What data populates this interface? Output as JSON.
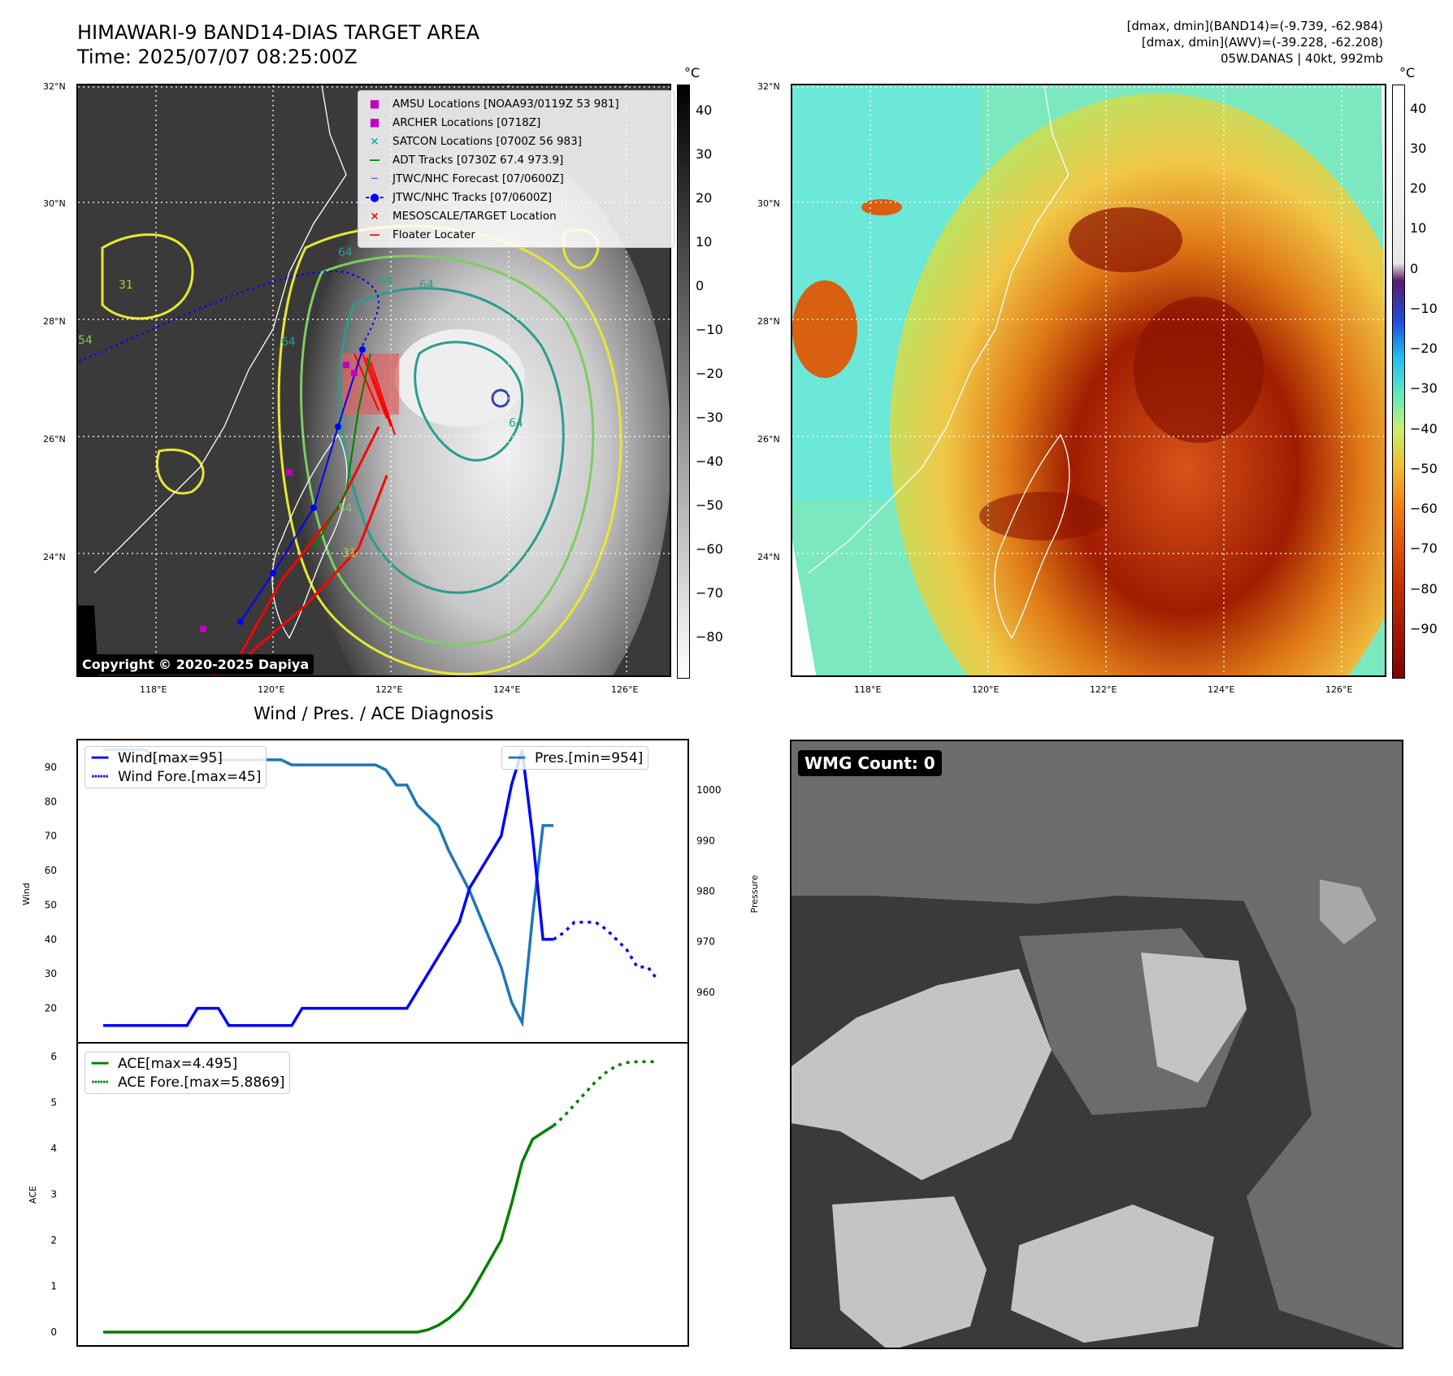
{
  "header": {
    "title_line1": "HIMAWARI-9 BAND14-DIAS TARGET AREA",
    "title_line2": "Time: 2025/07/07 08:25:00Z",
    "info_line1": "[dmax, dmin](BAND14)=(-9.739, -62.984)",
    "info_line2": "[dmax, dmin](AWV)=(-39.228, -62.208)",
    "info_line3": "05W.DANAS | 40kt, 992mb"
  },
  "map": {
    "lat_labels": [
      "32°N",
      "30°N",
      "28°N",
      "26°N",
      "24°N"
    ],
    "lon_labels": [
      "118°E",
      "120°E",
      "122°E",
      "124°E",
      "126°E"
    ],
    "copyright": "Copyright © 2020-2025 Dapiya",
    "legend": [
      {
        "label": "AMSU Locations [NOAA93/0119Z 53 981]",
        "symbol": "■",
        "color": "#c000c0"
      },
      {
        "label": "ARCHER Locations [0718Z]",
        "symbol": "■",
        "color": "#c000c0"
      },
      {
        "label": "SATCON Locations [0700Z 56 983]",
        "symbol": "×",
        "color": "#00b0b0"
      },
      {
        "label": "ADT Tracks [0730Z 67.4 973.9]",
        "symbol": "—",
        "color": "#008000"
      },
      {
        "label": "JTWC/NHC Forecast [07/0600Z]",
        "symbol": "┈",
        "color": "#0000ff"
      },
      {
        "label": "JTWC/NHC Tracks [07/0600Z]",
        "symbol": "-●-",
        "color": "#0000ff"
      },
      {
        "label": "MESOSCALE/TARGET Location",
        "symbol": "×",
        "color": "#ff0000"
      },
      {
        "label": "Floater Locater",
        "symbol": "—",
        "color": "#ff0000"
      }
    ],
    "contour_labels": [
      "64",
      "64",
      "64",
      "64",
      "64",
      "54",
      "31",
      "31",
      "54"
    ]
  },
  "colorbar_left": {
    "unit": "°C",
    "ticks": [
      "40",
      "30",
      "20",
      "10",
      "0",
      "−10",
      "−20",
      "−30",
      "−40",
      "−50",
      "−60",
      "−70",
      "−80"
    ]
  },
  "colorbar_right": {
    "unit": "°C",
    "ticks": [
      "40",
      "30",
      "20",
      "10",
      "0",
      "−10",
      "−20",
      "−30",
      "−40",
      "−50",
      "−60",
      "−70",
      "−80",
      "−90"
    ]
  },
  "wmg": {
    "label": "WMG Count: 0"
  },
  "diagnosis": {
    "title": "Wind / Pres. / ACE Diagnosis"
  },
  "chart_data": [
    {
      "type": "line",
      "title": "Wind / Pres. / ACE Diagnosis",
      "ylabel": "Wind",
      "y2label": "Pressure",
      "ylim": [
        10,
        98
      ],
      "y2lim": [
        950,
        1010
      ],
      "yticks": [
        20,
        30,
        40,
        50,
        60,
        70,
        80,
        90
      ],
      "y2ticks": [
        960,
        970,
        980,
        990,
        1000
      ],
      "x": [
        0,
        1,
        2,
        3,
        4,
        5,
        6,
        7,
        8,
        9,
        10,
        11,
        12,
        13,
        14,
        15,
        16,
        17,
        18,
        19,
        20,
        21,
        22,
        23,
        24,
        25,
        26,
        27,
        28,
        29,
        30,
        31,
        32,
        33,
        34,
        35,
        36,
        37,
        38,
        39,
        40,
        41,
        42,
        43,
        44,
        45,
        46,
        47,
        48,
        49,
        50,
        51,
        52,
        53,
        54,
        55,
        56,
        57,
        58,
        59,
        60,
        61,
        62,
        63,
        64,
        65,
        66
      ],
      "series": [
        {
          "name": "Wind[max=95]",
          "color": "#0000ff",
          "style": "solid",
          "x": [
            0,
            1,
            2,
            3,
            4,
            5,
            6,
            7,
            8,
            9,
            10,
            11,
            12,
            13,
            14,
            15,
            16,
            17,
            18,
            19,
            20,
            21,
            22,
            23,
            24,
            25,
            26,
            27,
            28,
            29,
            30,
            31,
            32,
            33,
            34,
            35,
            36,
            37,
            38,
            39,
            40,
            41,
            42,
            43,
            44,
            45,
            46,
            47
          ],
          "values": [
            15,
            15,
            15,
            15,
            15,
            15,
            15,
            15,
            15,
            20,
            20,
            20,
            15,
            15,
            15,
            15,
            15,
            15,
            15,
            20,
            20,
            20,
            20,
            20,
            20,
            20,
            20,
            20,
            20,
            20,
            25,
            30,
            35,
            40,
            45,
            55,
            60,
            65,
            70,
            85,
            95,
            70,
            40,
            40,
            null,
            null,
            null,
            null
          ]
        },
        {
          "name": "Wind Fore.[max=45]",
          "color": "#0000ff",
          "style": "dotted",
          "x": [
            43,
            44,
            45,
            46,
            47,
            48,
            49,
            50,
            51,
            52,
            53
          ],
          "values": [
            40,
            42,
            45,
            45,
            45,
            43,
            40,
            37,
            32,
            32,
            28
          ]
        },
        {
          "name": "Pres.[min=954]",
          "color": "#1f77b4",
          "style": "solid",
          "axis": "y2",
          "x": [
            0,
            1,
            2,
            3,
            4,
            5,
            6,
            7,
            8,
            9,
            10,
            11,
            12,
            13,
            14,
            15,
            16,
            17,
            18,
            19,
            20,
            21,
            22,
            23,
            24,
            25,
            26,
            27,
            28,
            29,
            30,
            31,
            32,
            33,
            34,
            35,
            36,
            37,
            38,
            39,
            40,
            41,
            42,
            43
          ],
          "values": [
            1008,
            1008,
            1008,
            1008,
            1008,
            1006,
            1006,
            1006,
            1006,
            1006,
            1006,
            1006,
            1006,
            1006,
            1006,
            1006,
            1006,
            1006,
            1005,
            1005,
            1005,
            1005,
            1005,
            1005,
            1005,
            1005,
            1005,
            1004,
            1001,
            1001,
            997,
            995,
            993,
            988,
            984,
            980,
            975,
            970,
            965,
            958,
            954,
            975,
            993,
            993
          ]
        }
      ]
    },
    {
      "type": "line",
      "ylabel": "ACE",
      "ylim": [
        -0.3,
        6.3
      ],
      "yticks": [
        0,
        1,
        2,
        3,
        4,
        5,
        6
      ],
      "series": [
        {
          "name": "ACE[max=4.495]",
          "color": "#008000",
          "style": "solid",
          "x": [
            0,
            5,
            10,
            15,
            20,
            25,
            30,
            31,
            32,
            33,
            34,
            35,
            36,
            37,
            38,
            39,
            40,
            41,
            42,
            43
          ],
          "values": [
            0,
            0,
            0,
            0,
            0,
            0,
            0,
            0.05,
            0.15,
            0.3,
            0.5,
            0.8,
            1.2,
            1.6,
            2.0,
            2.8,
            3.7,
            4.2,
            4.35,
            4.495
          ]
        },
        {
          "name": "ACE Fore.[max=5.8869]",
          "color": "#008000",
          "style": "dotted",
          "x": [
            43,
            44,
            45,
            46,
            47,
            48,
            49,
            50,
            51,
            52,
            53
          ],
          "values": [
            4.495,
            4.7,
            4.95,
            5.2,
            5.45,
            5.65,
            5.8,
            5.87,
            5.8869,
            5.8869,
            5.8869
          ]
        }
      ]
    }
  ]
}
